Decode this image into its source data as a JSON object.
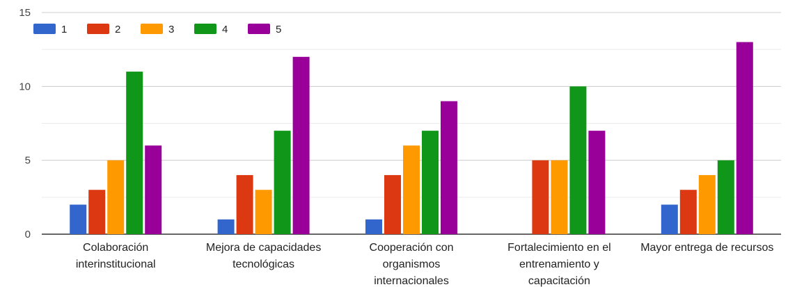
{
  "chart_data": {
    "type": "bar",
    "categories": [
      [
        "Colaboración",
        "interinstitucional"
      ],
      [
        "Mejora de capacidades",
        "tecnológicas"
      ],
      [
        "Cooperación con",
        "organismos",
        "internacionales"
      ],
      [
        "Fortalecimiento en el",
        "entrenamiento y",
        "capacitación"
      ],
      [
        "Mayor entrega de recursos"
      ]
    ],
    "series": [
      {
        "name": "1",
        "color": "#3366cc",
        "values": [
          2,
          1,
          1,
          0,
          2
        ]
      },
      {
        "name": "2",
        "color": "#dc3912",
        "values": [
          3,
          4,
          4,
          5,
          3
        ]
      },
      {
        "name": "3",
        "color": "#ff9900",
        "values": [
          5,
          3,
          6,
          5,
          4
        ]
      },
      {
        "name": "4",
        "color": "#109618",
        "values": [
          11,
          7,
          7,
          10,
          5
        ]
      },
      {
        "name": "5",
        "color": "#990099",
        "values": [
          6,
          12,
          9,
          7,
          13
        ]
      }
    ],
    "ylim": [
      0,
      15
    ],
    "yticks": [
      0,
      5,
      10,
      15
    ],
    "grid": true,
    "legend_position": "top-left"
  }
}
